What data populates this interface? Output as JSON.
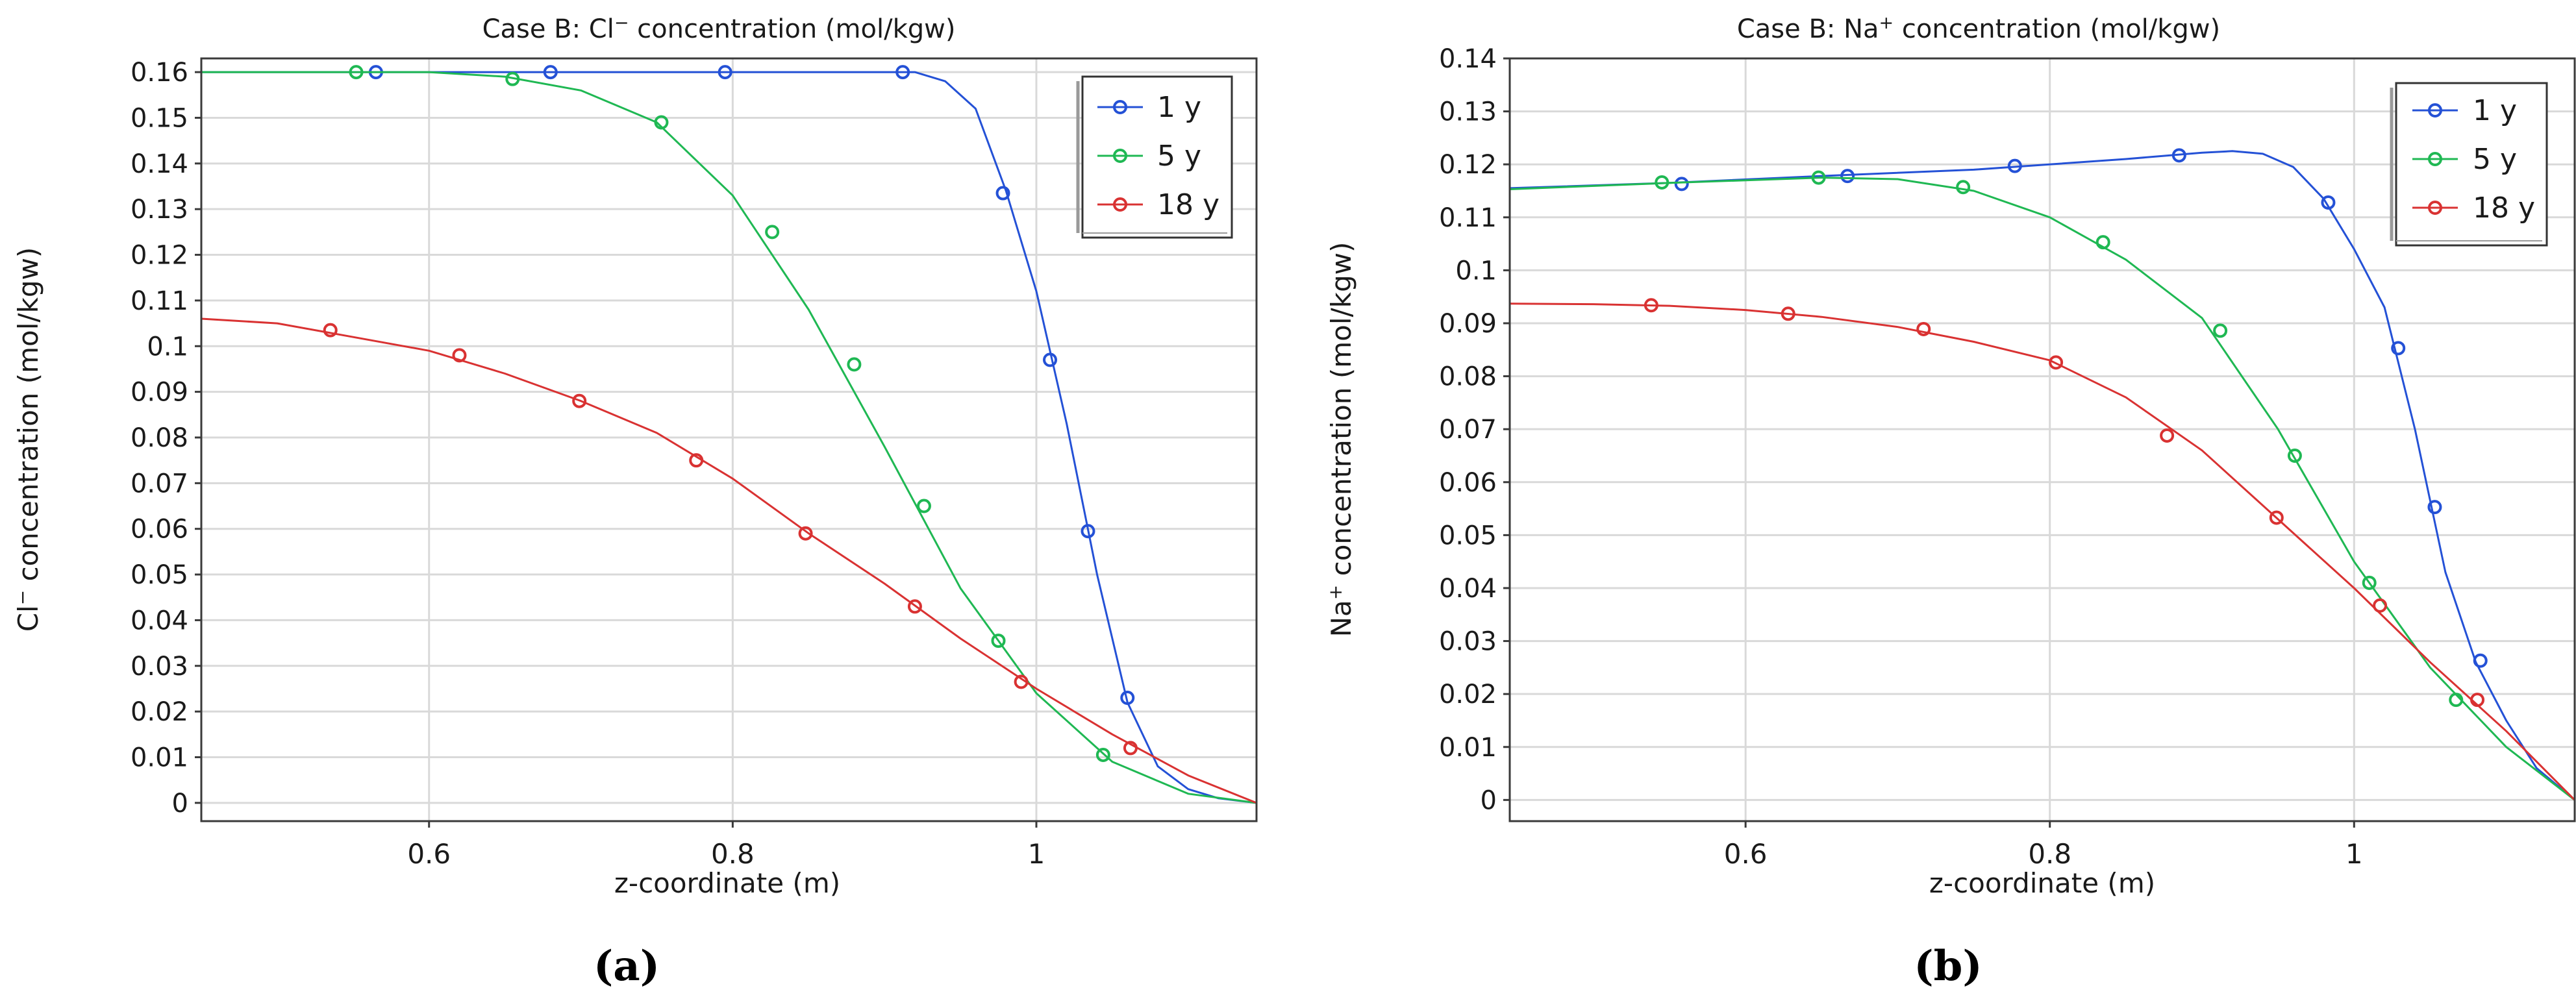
{
  "chart_data": [
    {
      "type": "line",
      "title_pre": "Case B: Cl",
      "title_sup": "−",
      "title_post": " concentration (mol/kgw)",
      "xlabel": "z-coordinate (m)",
      "ylabel_pre": "Cl",
      "ylabel_sup": "−",
      "ylabel_post": " concentration (mol/kgw)",
      "xlim": [
        0.45,
        1.145
      ],
      "ylim": [
        -0.004,
        0.163
      ],
      "xticks": [
        0.6,
        0.8,
        1.0
      ],
      "xtick_labels": [
        "0.6",
        "0.8",
        "1"
      ],
      "yticks": [
        0,
        0.01,
        0.02,
        0.03,
        0.04,
        0.05,
        0.06,
        0.07,
        0.08,
        0.09,
        0.1,
        0.11,
        0.12,
        0.13,
        0.14,
        0.15,
        0.16
      ],
      "ytick_labels": [
        "0",
        "0.01",
        "0.02",
        "0.03",
        "0.04",
        "0.05",
        "0.06",
        "0.07",
        "0.08",
        "0.09",
        "0.1",
        "0.11",
        "0.12",
        "0.13",
        "0.14",
        "0.15",
        "0.16"
      ],
      "legend_position": "top-right",
      "panel_label": "(a)",
      "series": [
        {
          "name": "1 y",
          "color": "#2451d6",
          "x": [
            0.45,
            0.6,
            0.7,
            0.8,
            0.9,
            0.92,
            0.94,
            0.96,
            0.98,
            1.0,
            1.02,
            1.04,
            1.06,
            1.08,
            1.1,
            1.12,
            1.145
          ],
          "y": [
            0.16,
            0.16,
            0.16,
            0.16,
            0.16,
            0.16,
            0.158,
            0.152,
            0.134,
            0.112,
            0.083,
            0.05,
            0.022,
            0.008,
            0.003,
            0.001,
            0
          ],
          "mx": [
            0.565,
            0.68,
            0.795,
            0.912,
            0.978,
            1.009,
            1.034,
            1.06
          ],
          "my": [
            0.16,
            0.16,
            0.16,
            0.16,
            0.1335,
            0.097,
            0.0595,
            0.023
          ]
        },
        {
          "name": "5 y",
          "color": "#1fb853",
          "x": [
            0.45,
            0.55,
            0.6,
            0.65,
            0.7,
            0.75,
            0.8,
            0.85,
            0.9,
            0.95,
            1.0,
            1.05,
            1.1,
            1.145
          ],
          "y": [
            0.16,
            0.16,
            0.16,
            0.159,
            0.156,
            0.149,
            0.133,
            0.108,
            0.078,
            0.047,
            0.024,
            0.009,
            0.002,
            0
          ],
          "mx": [
            0.552,
            0.655,
            0.753,
            0.826,
            0.88,
            0.926,
            0.975,
            1.044
          ],
          "my": [
            0.16,
            0.1585,
            0.149,
            0.125,
            0.096,
            0.065,
            0.0355,
            0.0105
          ]
        },
        {
          "name": "18 y",
          "color": "#d93232",
          "x": [
            0.45,
            0.5,
            0.55,
            0.6,
            0.65,
            0.7,
            0.75,
            0.8,
            0.85,
            0.9,
            0.95,
            1.0,
            1.05,
            1.1,
            1.145
          ],
          "y": [
            0.106,
            0.105,
            0.102,
            0.099,
            0.094,
            0.088,
            0.081,
            0.071,
            0.059,
            0.048,
            0.036,
            0.025,
            0.015,
            0.006,
            0
          ],
          "mx": [
            0.535,
            0.62,
            0.699,
            0.776,
            0.848,
            0.92,
            0.99,
            1.062
          ],
          "my": [
            0.1035,
            0.098,
            0.088,
            0.075,
            0.059,
            0.043,
            0.0265,
            0.012
          ]
        }
      ]
    },
    {
      "type": "line",
      "title_pre": "Case B: Na",
      "title_sup": "+",
      "title_post": " concentration (mol/kgw)",
      "xlabel": "z-coordinate (m)",
      "ylabel_pre": "Na",
      "ylabel_sup": "+",
      "ylabel_post": " concentration (mol/kgw)",
      "xlim": [
        0.445,
        1.145
      ],
      "ylim": [
        -0.004,
        0.14
      ],
      "xticks": [
        0.6,
        0.8,
        1.0
      ],
      "xtick_labels": [
        "0.6",
        "0.8",
        "1"
      ],
      "yticks": [
        0,
        0.01,
        0.02,
        0.03,
        0.04,
        0.05,
        0.06,
        0.07,
        0.08,
        0.09,
        0.1,
        0.11,
        0.12,
        0.13,
        0.14
      ],
      "ytick_labels": [
        "0",
        "0.01",
        "0.02",
        "0.03",
        "0.04",
        "0.05",
        "0.06",
        "0.07",
        "0.08",
        "0.09",
        "0.1",
        "0.11",
        "0.12",
        "0.13",
        "0.14"
      ],
      "legend_position": "top-right",
      "panel_label": "(b)",
      "series": [
        {
          "name": "1 y",
          "color": "#2451d6",
          "x": [
            0.445,
            0.55,
            0.65,
            0.75,
            0.85,
            0.9,
            0.92,
            0.94,
            0.96,
            0.98,
            1.0,
            1.02,
            1.04,
            1.06,
            1.08,
            1.1,
            1.12,
            1.145
          ],
          "y": [
            0.1155,
            0.1165,
            0.1178,
            0.119,
            0.121,
            0.1222,
            0.1225,
            0.122,
            0.1195,
            0.1135,
            0.104,
            0.093,
            0.07,
            0.043,
            0.026,
            0.015,
            0.006,
            0
          ],
          "mx": [
            0.558,
            0.667,
            0.777,
            0.885,
            0.983,
            1.029,
            1.053,
            1.083
          ],
          "my": [
            0.1163,
            0.1178,
            0.1197,
            0.1217,
            0.1128,
            0.0853,
            0.0553,
            0.0263
          ]
        },
        {
          "name": "5 y",
          "color": "#1fb853",
          "x": [
            0.445,
            0.55,
            0.65,
            0.7,
            0.75,
            0.8,
            0.85,
            0.9,
            0.95,
            1.0,
            1.05,
            1.1,
            1.145
          ],
          "y": [
            0.1153,
            0.1165,
            0.1175,
            0.1172,
            0.115,
            0.11,
            0.102,
            0.091,
            0.07,
            0.045,
            0.025,
            0.01,
            0
          ],
          "mx": [
            0.545,
            0.648,
            0.743,
            0.835,
            0.912,
            0.961,
            1.01,
            1.067
          ],
          "my": [
            0.1166,
            0.1175,
            0.1157,
            0.1053,
            0.0886,
            0.065,
            0.041,
            0.0189
          ]
        },
        {
          "name": "18 y",
          "color": "#d93232",
          "x": [
            0.445,
            0.5,
            0.55,
            0.6,
            0.65,
            0.7,
            0.75,
            0.8,
            0.85,
            0.9,
            0.95,
            1.0,
            1.05,
            1.1,
            1.145
          ],
          "y": [
            0.0937,
            0.0936,
            0.0933,
            0.0925,
            0.0912,
            0.0893,
            0.0865,
            0.083,
            0.076,
            0.066,
            0.053,
            0.04,
            0.026,
            0.013,
            0
          ],
          "mx": [
            0.538,
            0.628,
            0.717,
            0.804,
            0.877,
            0.949,
            1.017,
            1.081
          ],
          "my": [
            0.0934,
            0.0918,
            0.0889,
            0.0826,
            0.0688,
            0.0533,
            0.0367,
            0.0189
          ]
        }
      ]
    }
  ]
}
